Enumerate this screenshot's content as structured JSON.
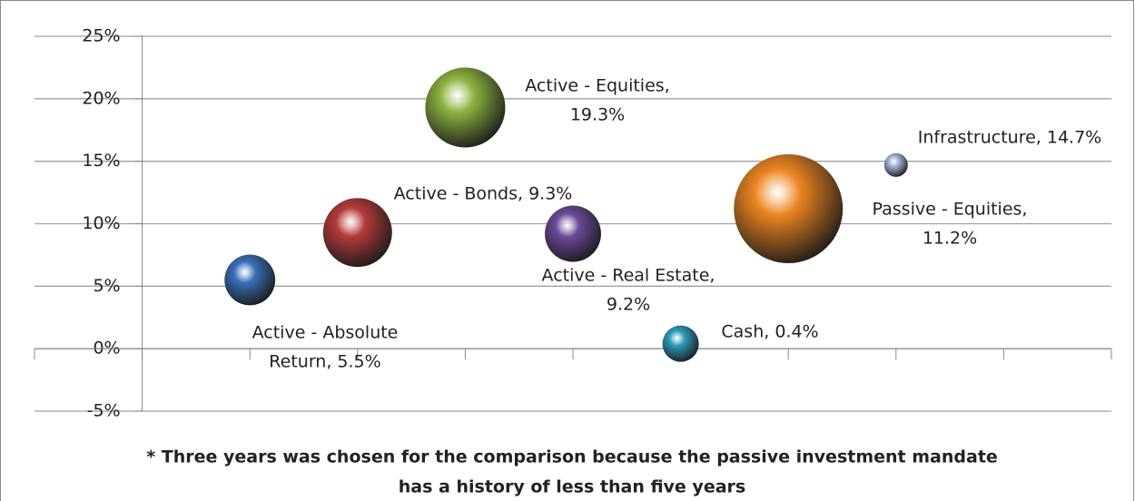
{
  "chart_data": {
    "type": "bubble",
    "x": [
      1,
      2,
      3,
      4,
      5,
      6,
      7
    ],
    "values": [
      5.5,
      9.3,
      19.3,
      9.2,
      0.4,
      11.2,
      14.7
    ],
    "sizes": [
      7.8,
      14.4,
      19.4,
      9.6,
      4,
      36,
      1.7
    ],
    "colors": [
      "#3a6fb8",
      "#b53a3a",
      "#8db33f",
      "#6b4a98",
      "#2b9cb8",
      "#ec8420",
      "#a3b4da"
    ],
    "labels": [
      [
        "Active - Absolute",
        "Return, 5.5%"
      ],
      [
        "Active - Bonds, 9.3%"
      ],
      [
        "Active - Equities,",
        "19.3%"
      ],
      [
        "Active - Real Estate,",
        "9.2%"
      ],
      [
        "Cash, 0.4%"
      ],
      [
        "Passive - Equities,",
        "11.2%"
      ],
      [
        "Infrastructure, 14.7%"
      ]
    ],
    "xlim": [
      -1,
      9
    ],
    "xticks": [
      -1,
      0,
      1,
      2,
      3,
      4,
      5,
      6,
      7,
      8,
      9
    ],
    "ylim": [
      -5,
      25
    ],
    "yticks": [
      {
        "value": -5,
        "label": "-5%"
      },
      {
        "value": 0,
        "label": "0%"
      },
      {
        "value": 5,
        "label": "5%"
      },
      {
        "value": 10,
        "label": "10%"
      },
      {
        "value": 15,
        "label": "15%"
      },
      {
        "value": 20,
        "label": "20%"
      },
      {
        "value": 25,
        "label": "25%"
      }
    ],
    "grid": true,
    "footnote": [
      "* Three years was chosen for the comparison because the passive investment mandate",
      "has a history of less than five years"
    ]
  }
}
